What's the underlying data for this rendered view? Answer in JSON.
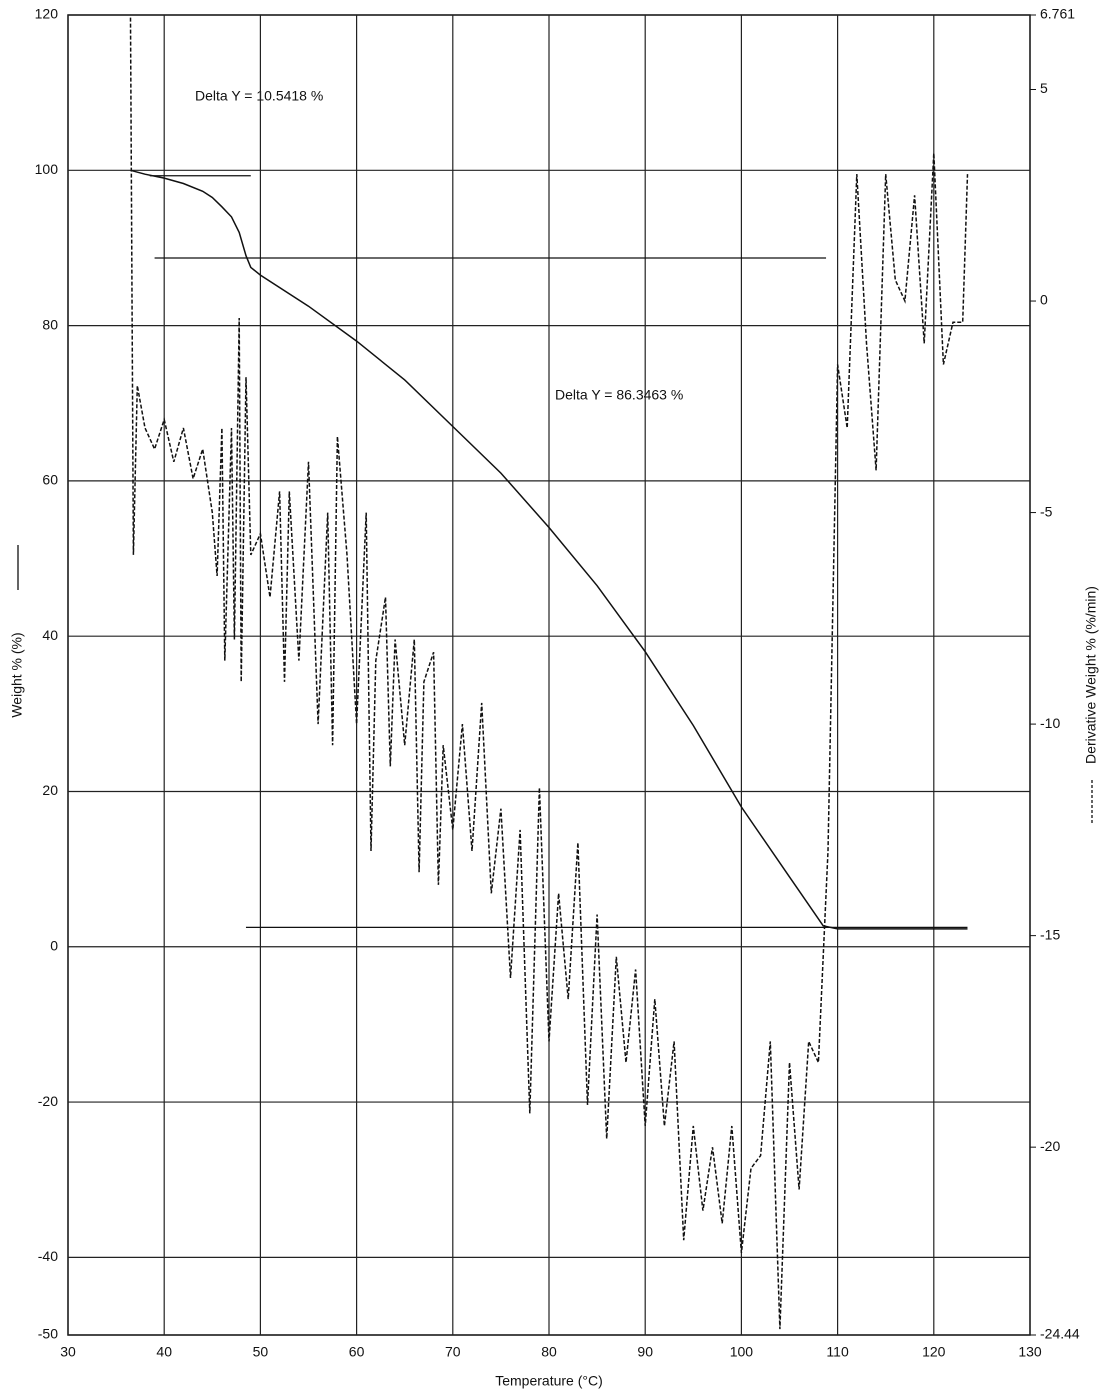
{
  "chart_data": {
    "type": "line",
    "xlabel": "Temperature (°C)",
    "ylabel": "Weight % (%)",
    "y2label": "Derivative Weight % (%/min)",
    "annotations": [
      "Delta Y = 10.5418 %",
      "Delta Y = 86.3463 %"
    ],
    "xlim": [
      30,
      130
    ],
    "xticks": [
      30,
      40,
      50,
      60,
      70,
      80,
      90,
      100,
      110,
      120,
      130
    ],
    "ylim": [
      -50,
      120
    ],
    "yticks": [
      -50,
      -40,
      -20,
      0,
      20,
      40,
      60,
      80,
      100,
      120
    ],
    "y2lim": [
      -24.44,
      6.761
    ],
    "y2ticks": [
      -24.44,
      -20,
      -15,
      -10,
      -5,
      0,
      5,
      6.761
    ],
    "grid": true,
    "reference_lines": [
      {
        "y": 99.3,
        "x": [
          38.5,
          49
        ]
      },
      {
        "y": 88.7,
        "x": [
          39,
          108.8
        ]
      },
      {
        "y": 2.5,
        "x": [
          48.5,
          123.5
        ]
      }
    ],
    "series": [
      {
        "color": "#111111",
        "style": "solid",
        "x": [
          36.5,
          38,
          40,
          42,
          44,
          45,
          46,
          47,
          47.8,
          48.5,
          49,
          50,
          55,
          60,
          65,
          70,
          75,
          80,
          85,
          90,
          95,
          100,
          105,
          108.5,
          110,
          115,
          123.5
        ],
        "values": [
          100,
          99.5,
          99,
          98.3,
          97.3,
          96.5,
          95.3,
          94,
          92,
          89,
          87.5,
          86.5,
          82.5,
          78,
          73,
          67,
          61,
          54,
          46.5,
          38,
          28.5,
          18,
          9,
          2.7,
          2.3,
          2.3,
          2.3
        ]
      },
      {
        "color": "#111111",
        "style": "dashed",
        "axis": "y2",
        "x": [
          36.5,
          36.8,
          37.2,
          38,
          39,
          40,
          41,
          42,
          43,
          44,
          45,
          45.5,
          46,
          46.3,
          47,
          47.3,
          47.8,
          48,
          48.5,
          49,
          50,
          51,
          52,
          52.5,
          53,
          54,
          55,
          56,
          57,
          57.5,
          58,
          59,
          60,
          61,
          61.5,
          62,
          63,
          63.5,
          64,
          65,
          66,
          66.5,
          67,
          68,
          68.5,
          69,
          70,
          71,
          72,
          73,
          74,
          75,
          76,
          77,
          78,
          79,
          80,
          81,
          82,
          83,
          84,
          85,
          86,
          87,
          88,
          89,
          90,
          91,
          92,
          93,
          94,
          95,
          96,
          97,
          98,
          99,
          100,
          101,
          102,
          103,
          104,
          105,
          106,
          107,
          108,
          109,
          110,
          111,
          112,
          113,
          114,
          115,
          116,
          117,
          118,
          119,
          120,
          121,
          122,
          123,
          123.5
        ],
        "values": [
          6.7,
          -6,
          -2,
          -3,
          -3.5,
          -2.8,
          -3.8,
          -3,
          -4.2,
          -3.5,
          -5,
          -6.5,
          -3,
          -8.5,
          -3,
          -8,
          -0.4,
          -9,
          -1.8,
          -6,
          -5.5,
          -7,
          -4.5,
          -9,
          -4.5,
          -8.5,
          -3.8,
          -10,
          -5,
          -10.5,
          -3.2,
          -6,
          -10,
          -5,
          -13,
          -8.5,
          -7,
          -11,
          -8,
          -10.5,
          -8,
          -13.5,
          -9,
          -8.3,
          -13.8,
          -10.5,
          -12.5,
          -10,
          -13,
          -9.5,
          -14,
          -12,
          -16,
          -12.5,
          -19.2,
          -11.5,
          -17.5,
          -14,
          -16.5,
          -12.8,
          -19,
          -14.5,
          -19.8,
          -15.5,
          -18,
          -15.8,
          -19.5,
          -16.5,
          -19.5,
          -17.5,
          -22.2,
          -19.5,
          -21.5,
          -20,
          -21.8,
          -19.5,
          -22.5,
          -20.5,
          -20.2,
          -17.5,
          -24.3,
          -18,
          -21,
          -17.5,
          -18,
          -13,
          -1.5,
          -3,
          3,
          -1,
          -4,
          3,
          0.5,
          0,
          2.5,
          -1,
          3.5,
          -1.5,
          -0.5,
          -0.5,
          3
        ]
      }
    ]
  }
}
